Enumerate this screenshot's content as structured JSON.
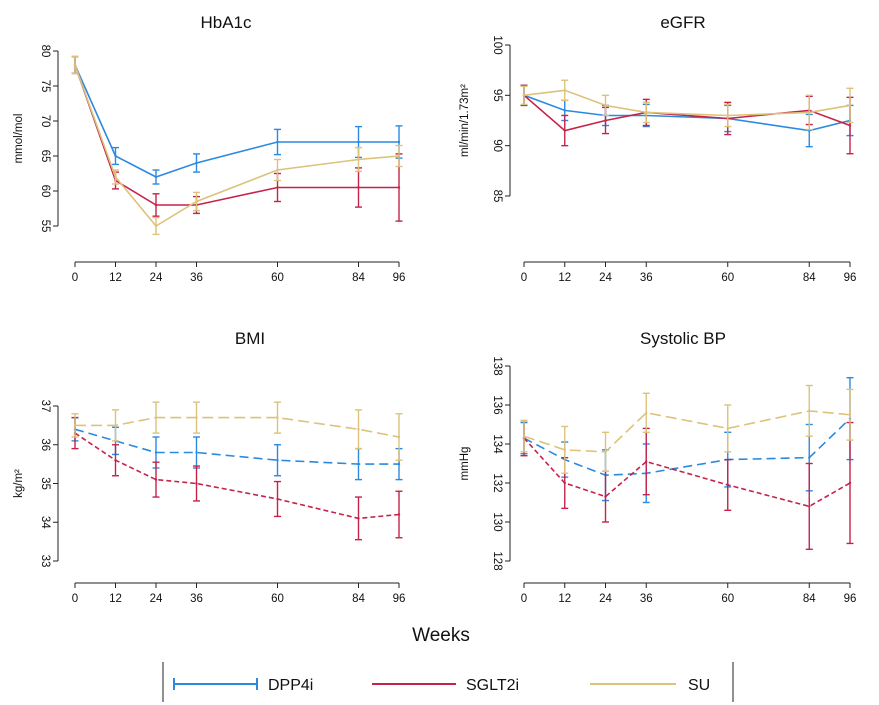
{
  "chart_data": [
    {
      "type": "line",
      "title": "HbA1c",
      "ylabel": "mmol/mol",
      "ylim": [
        50,
        80
      ],
      "yticks": [
        55,
        60,
        65,
        70,
        75,
        80
      ],
      "x": [
        0,
        12,
        24,
        36,
        60,
        84,
        96
      ],
      "xticks": [
        0,
        12,
        24,
        36,
        60,
        84,
        96
      ],
      "series": [
        {
          "name": "DPP4i",
          "values": [
            78,
            65,
            62,
            64,
            67,
            67,
            67
          ],
          "err": [
            1.2,
            1.2,
            1.0,
            1.3,
            1.8,
            2.2,
            2.3
          ]
        },
        {
          "name": "SGLT2i",
          "values": [
            78,
            61.5,
            58,
            58,
            60.5,
            60.5,
            60.5
          ],
          "err": [
            1.2,
            1.2,
            1.6,
            1.2,
            2.0,
            2.8,
            4.8
          ]
        },
        {
          "name": "SU",
          "values": [
            78,
            62,
            55,
            58.5,
            63,
            64.5,
            65
          ],
          "err": [
            1.2,
            1.0,
            1.2,
            1.3,
            1.5,
            1.7,
            1.5
          ]
        }
      ]
    },
    {
      "type": "line",
      "title": "eGFR",
      "ylabel": "ml/min/1.73m²",
      "ylim": [
        80,
        100
      ],
      "yticks": [
        85,
        90,
        95,
        100
      ],
      "x": [
        0,
        12,
        24,
        36,
        60,
        84,
        96
      ],
      "xticks": [
        0,
        12,
        24,
        36,
        60,
        84,
        96
      ],
      "series": [
        {
          "name": "DPP4i",
          "values": [
            95,
            93.5,
            93,
            93,
            92.7,
            91.5,
            92.5
          ],
          "err": [
            1.0,
            1.0,
            1.0,
            1.1,
            1.3,
            1.6,
            1.5
          ]
        },
        {
          "name": "SGLT2i",
          "values": [
            95,
            91.5,
            92.5,
            93.3,
            92.7,
            93.5,
            92
          ],
          "err": [
            1.0,
            1.5,
            1.3,
            1.3,
            1.6,
            1.4,
            2.8
          ]
        },
        {
          "name": "SU",
          "values": [
            95,
            95.5,
            94,
            93.3,
            93,
            93.3,
            94
          ],
          "err": [
            0.9,
            1.0,
            1.0,
            1.0,
            1.1,
            1.7,
            1.7
          ]
        }
      ]
    },
    {
      "type": "line",
      "title": "BMI",
      "ylabel": "kg/m²",
      "ylim": [
        33,
        38
      ],
      "yticks": [
        33,
        34,
        35,
        36,
        37
      ],
      "x": [
        0,
        12,
        24,
        36,
        60,
        84,
        96
      ],
      "xticks": [
        0,
        12,
        24,
        36,
        60,
        84,
        96
      ],
      "series": [
        {
          "name": "DPP4i",
          "values": [
            36.4,
            36.1,
            35.8,
            35.8,
            35.6,
            35.5,
            35.5
          ],
          "err": [
            0.3,
            0.35,
            0.4,
            0.4,
            0.4,
            0.4,
            0.4
          ]
        },
        {
          "name": "SGLT2i",
          "values": [
            36.3,
            35.6,
            35.1,
            35.0,
            34.6,
            34.1,
            34.2
          ],
          "err": [
            0.4,
            0.4,
            0.45,
            0.45,
            0.45,
            0.55,
            0.6
          ]
        },
        {
          "name": "SU",
          "values": [
            36.5,
            36.5,
            36.7,
            36.7,
            36.7,
            36.4,
            36.2
          ],
          "err": [
            0.3,
            0.4,
            0.4,
            0.4,
            0.4,
            0.5,
            0.6
          ]
        }
      ]
    },
    {
      "type": "line",
      "title": "Systolic BP",
      "ylabel": "mmHg",
      "ylim": [
        127.5,
        138
      ],
      "yticks": [
        128,
        130,
        132,
        134,
        136,
        138
      ],
      "x": [
        0,
        12,
        24,
        36,
        60,
        84,
        96
      ],
      "xticks": [
        0,
        12,
        24,
        36,
        60,
        84,
        96
      ],
      "series": [
        {
          "name": "DPP4i",
          "values": [
            134.3,
            133.2,
            132.4,
            132.5,
            133.2,
            133.3,
            135.3
          ],
          "err": [
            0.8,
            0.9,
            1.3,
            1.5,
            1.4,
            1.7,
            2.1
          ]
        },
        {
          "name": "SGLT2i",
          "values": [
            134.3,
            132,
            131.3,
            133.1,
            131.9,
            130.8,
            132
          ],
          "err": [
            0.9,
            1.3,
            1.3,
            1.7,
            1.3,
            2.2,
            3.1
          ]
        },
        {
          "name": "SU",
          "values": [
            134.4,
            133.7,
            133.6,
            135.6,
            134.8,
            135.7,
            135.5
          ],
          "err": [
            0.8,
            1.2,
            1.0,
            1.0,
            1.2,
            1.3,
            1.3
          ]
        }
      ]
    }
  ],
  "x_axis_caption": "Weeks",
  "legend": [
    {
      "name": "DPP4i",
      "color": "#2b8ae0"
    },
    {
      "name": "SGLT2i",
      "color": "#c5234a"
    },
    {
      "name": "SU",
      "color": "#dcc27a"
    }
  ],
  "series_colors": {
    "DPP4i": "#2b8ae0",
    "SGLT2i": "#c5234a",
    "SU": "#dcc27a"
  }
}
